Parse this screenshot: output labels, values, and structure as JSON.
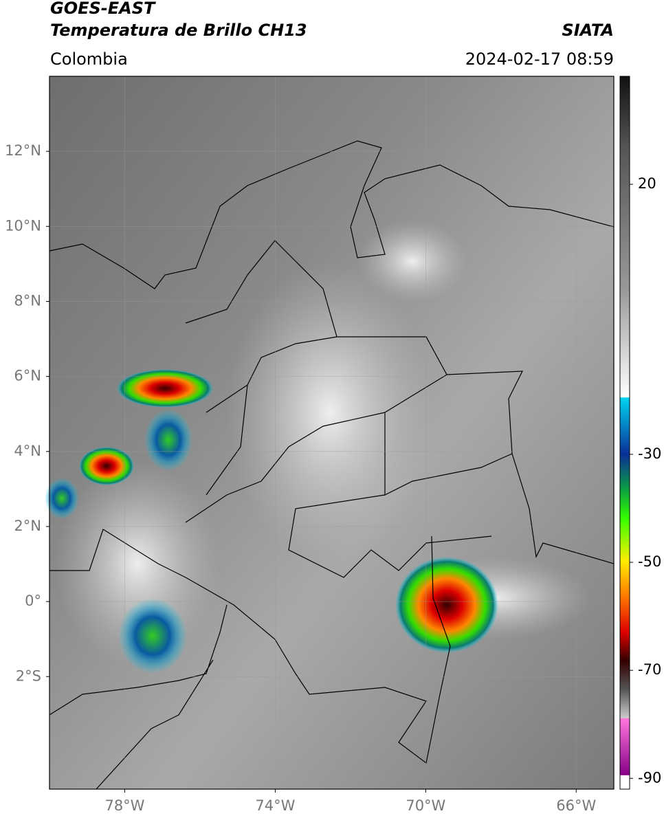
{
  "header": {
    "satellite": "GOES-EAST",
    "product": "Temperatura de Brillo CH13",
    "source": "SIATA",
    "region": "Colombia",
    "datetime": "2024-02-17 08:59"
  },
  "map": {
    "xlim": [
      -80,
      -65
    ],
    "ylim": [
      -5,
      14
    ],
    "xticks": [
      {
        "value": -78,
        "label": "78°W"
      },
      {
        "value": -74,
        "label": "74°W"
      },
      {
        "value": -70,
        "label": "70°W"
      },
      {
        "value": -66,
        "label": "66°W"
      }
    ],
    "yticks": [
      {
        "value": 12,
        "label": "12°N"
      },
      {
        "value": 10,
        "label": "10°N"
      },
      {
        "value": 8,
        "label": "8°N"
      },
      {
        "value": 6,
        "label": "6°N"
      },
      {
        "value": 4,
        "label": "4°N"
      },
      {
        "value": 2,
        "label": "2°N"
      },
      {
        "value": 0,
        "label": "0°"
      },
      {
        "value": -2,
        "label": "2°S"
      }
    ]
  },
  "colorbar": {
    "ylim": [
      -92,
      40
    ],
    "yticks": [
      20,
      -30,
      -50,
      -70,
      -90
    ]
  }
}
